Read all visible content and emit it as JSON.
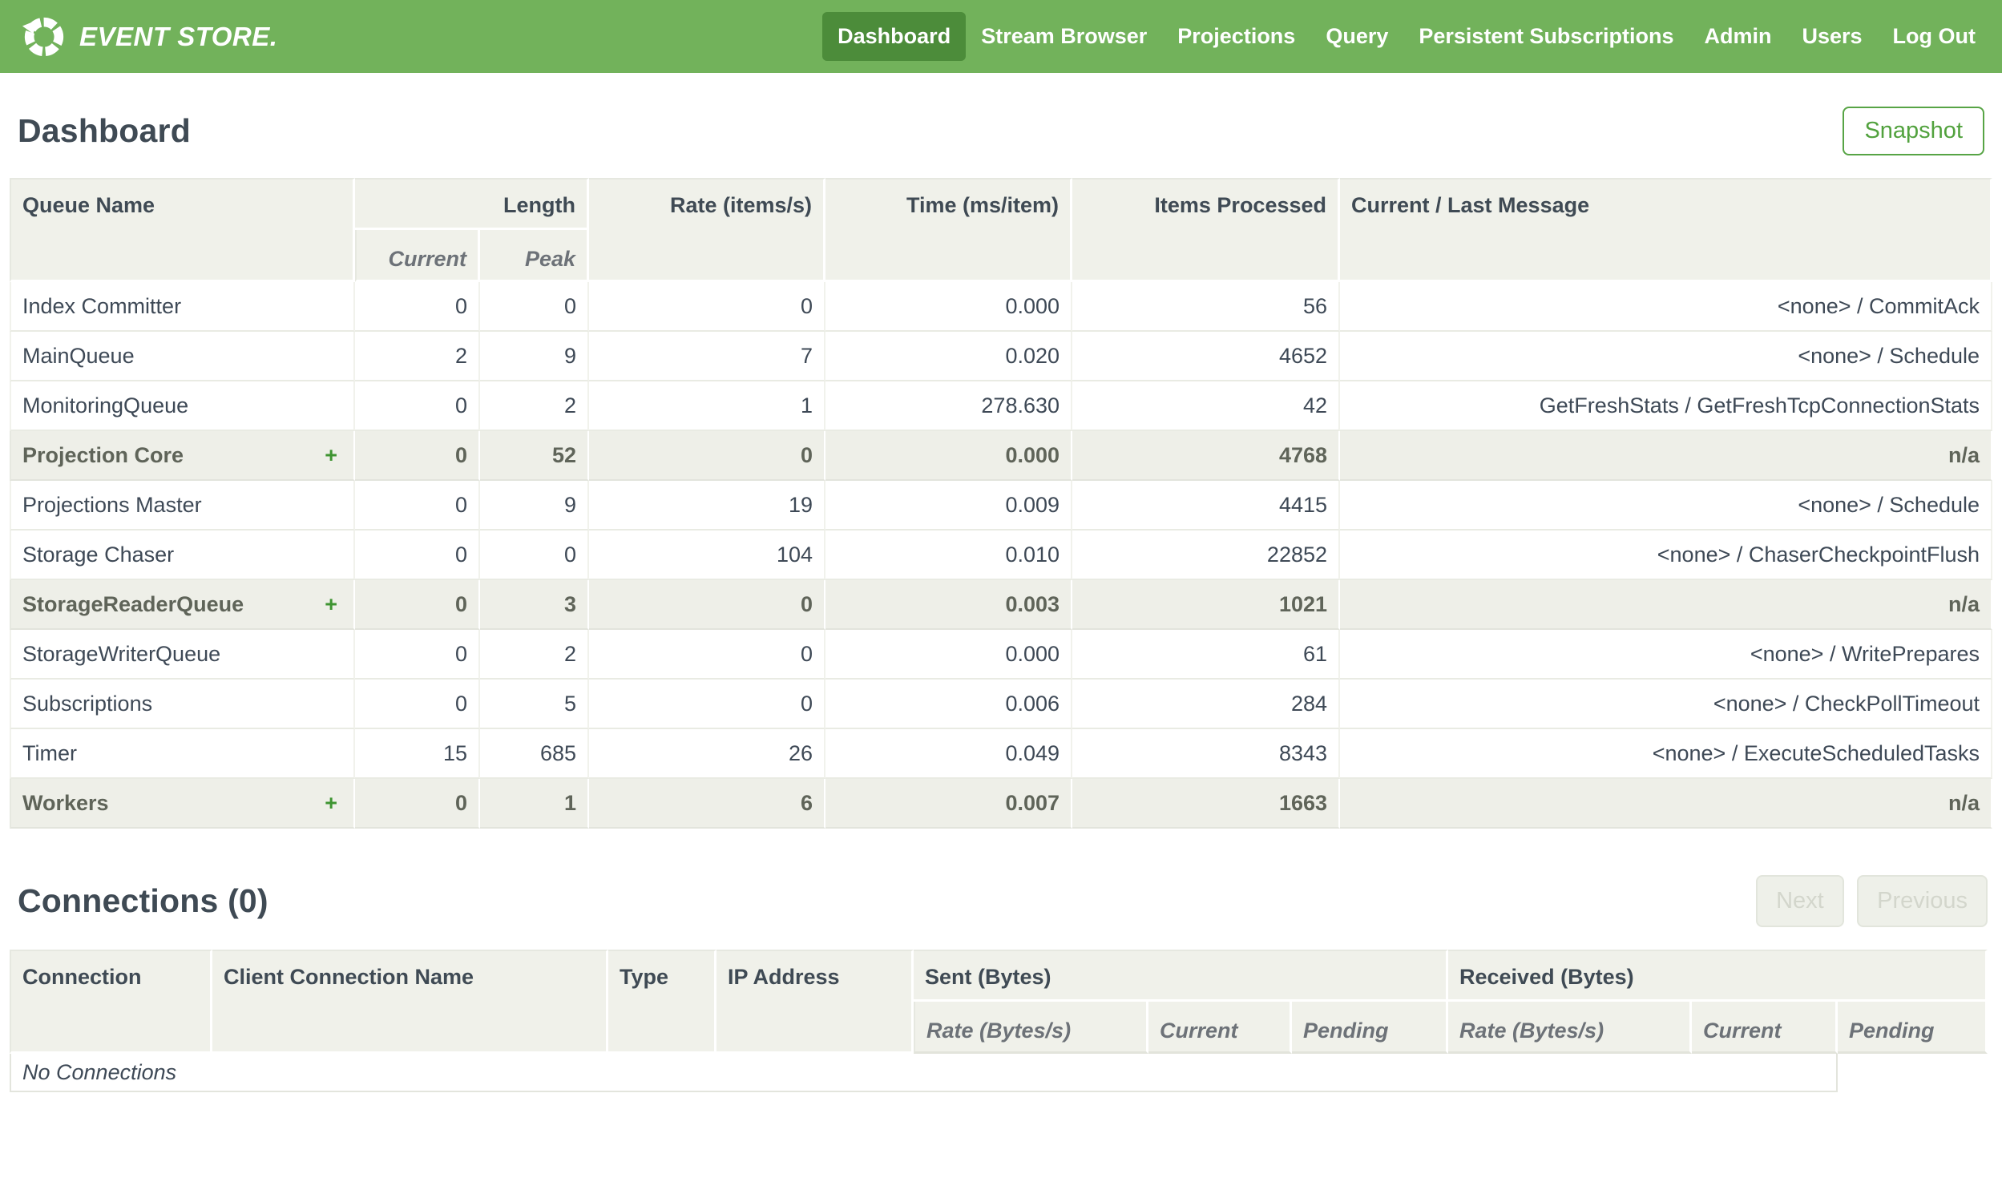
{
  "navbar": {
    "brand": "EVENT STORE.",
    "items": [
      {
        "label": "Dashboard",
        "active": true
      },
      {
        "label": "Stream Browser",
        "active": false
      },
      {
        "label": "Projections",
        "active": false
      },
      {
        "label": "Query",
        "active": false
      },
      {
        "label": "Persistent Subscriptions",
        "active": false
      },
      {
        "label": "Admin",
        "active": false
      },
      {
        "label": "Users",
        "active": false
      },
      {
        "label": "Log Out",
        "active": false
      }
    ]
  },
  "page": {
    "title": "Dashboard",
    "snapshot_button": "Snapshot"
  },
  "queue_table": {
    "headers": {
      "queue_name": "Queue Name",
      "length": "Length",
      "current": "Current",
      "peak": "Peak",
      "rate": "Rate (items/s)",
      "time": "Time (ms/item)",
      "items_processed": "Items Processed",
      "message": "Current / Last Message"
    },
    "rows": [
      {
        "name": "Index Committer",
        "group": false,
        "expander": "",
        "current": "0",
        "peak": "0",
        "rate": "0",
        "time": "0.000",
        "items": "56",
        "message": "<none> / CommitAck"
      },
      {
        "name": "MainQueue",
        "group": false,
        "expander": "",
        "current": "2",
        "peak": "9",
        "rate": "7",
        "time": "0.020",
        "items": "4652",
        "message": "<none> / Schedule"
      },
      {
        "name": "MonitoringQueue",
        "group": false,
        "expander": "",
        "current": "0",
        "peak": "2",
        "rate": "1",
        "time": "278.630",
        "items": "42",
        "message": "GetFreshStats / GetFreshTcpConnectionStats"
      },
      {
        "name": "Projection Core",
        "group": true,
        "expander": "+",
        "current": "0",
        "peak": "52",
        "rate": "0",
        "time": "0.000",
        "items": "4768",
        "message": "n/a"
      },
      {
        "name": "Projections Master",
        "group": false,
        "expander": "",
        "current": "0",
        "peak": "9",
        "rate": "19",
        "time": "0.009",
        "items": "4415",
        "message": "<none> / Schedule"
      },
      {
        "name": "Storage Chaser",
        "group": false,
        "expander": "",
        "current": "0",
        "peak": "0",
        "rate": "104",
        "time": "0.010",
        "items": "22852",
        "message": "<none> / ChaserCheckpointFlush"
      },
      {
        "name": "StorageReaderQueue",
        "group": true,
        "expander": "+",
        "current": "0",
        "peak": "3",
        "rate": "0",
        "time": "0.003",
        "items": "1021",
        "message": "n/a"
      },
      {
        "name": "StorageWriterQueue",
        "group": false,
        "expander": "",
        "current": "0",
        "peak": "2",
        "rate": "0",
        "time": "0.000",
        "items": "61",
        "message": "<none> / WritePrepares"
      },
      {
        "name": "Subscriptions",
        "group": false,
        "expander": "",
        "current": "0",
        "peak": "5",
        "rate": "0",
        "time": "0.006",
        "items": "284",
        "message": "<none> / CheckPollTimeout"
      },
      {
        "name": "Timer",
        "group": false,
        "expander": "",
        "current": "15",
        "peak": "685",
        "rate": "26",
        "time": "0.049",
        "items": "8343",
        "message": "<none> / ExecuteScheduledTasks"
      },
      {
        "name": "Workers",
        "group": true,
        "expander": "+",
        "current": "0",
        "peak": "1",
        "rate": "6",
        "time": "0.007",
        "items": "1663",
        "message": "n/a"
      }
    ]
  },
  "connections": {
    "title": "Connections (0)",
    "next_button": "Next",
    "previous_button": "Previous",
    "headers": {
      "connection": "Connection",
      "client_connection_name": "Client Connection Name",
      "type": "Type",
      "ip_address": "IP Address",
      "sent": "Sent (Bytes)",
      "received": "Received (Bytes)",
      "rate": "Rate (Bytes/s)",
      "current": "Current",
      "pending": "Pending"
    },
    "empty_message": "No Connections"
  },
  "colors": {
    "navbar_green": "#72b25b",
    "active_item_green": "#4c8c3a",
    "expander_green": "#3e9431",
    "snapshot_green": "#52a23e",
    "header_background": "#f0f1ea",
    "group_row_background": "#eeefe8",
    "text_dark": "#3e4956",
    "heading_dark": "#3f4a54",
    "subheader_gray": "#6d7278",
    "group_text_gray": "#5f6459",
    "disabled_background": "#eef0e9",
    "disabled_text": "#d3d6cc",
    "disabled_border": "#e2e5dc"
  }
}
